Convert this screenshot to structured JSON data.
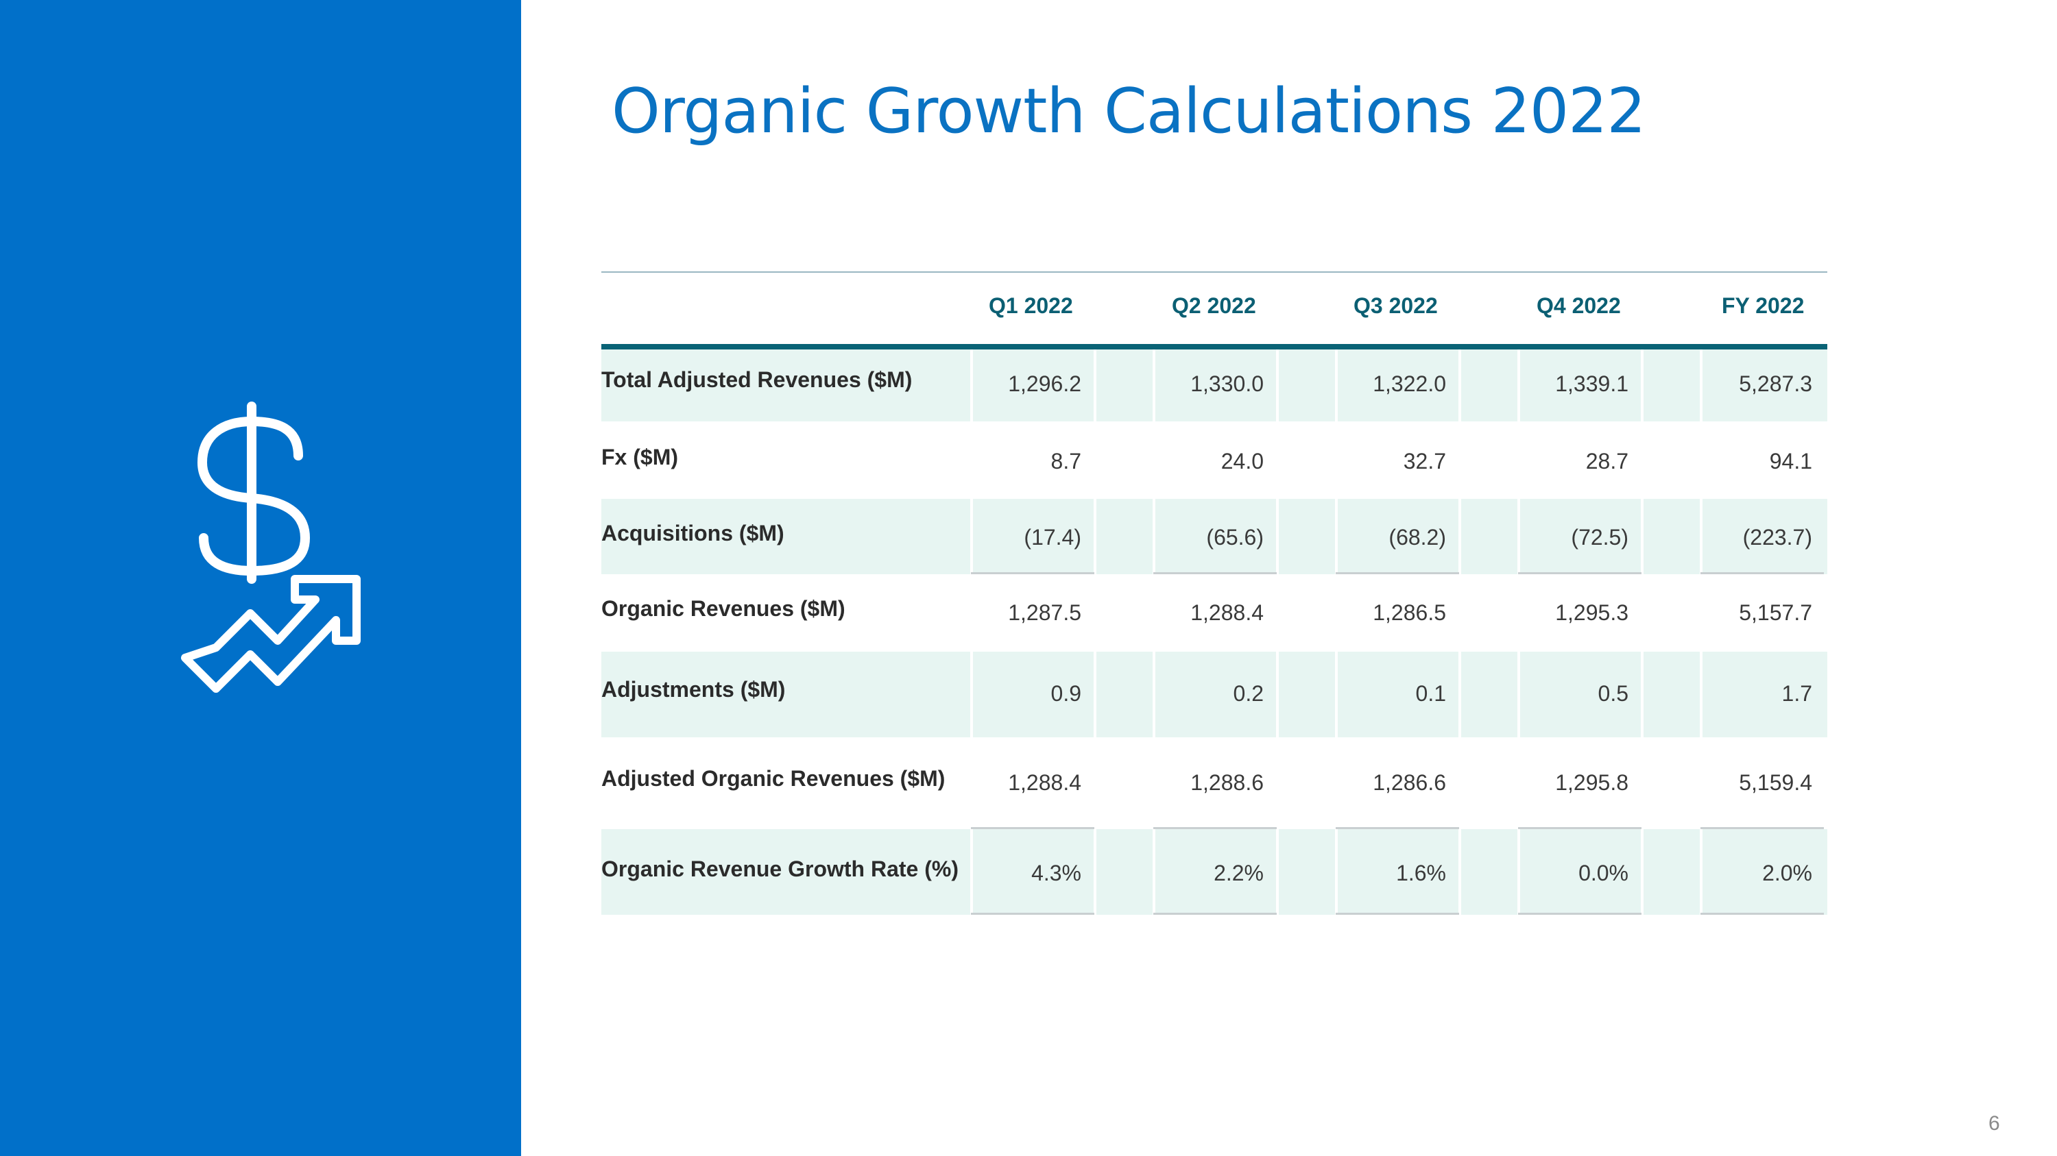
{
  "slide": {
    "title": "Organic Growth Calculations 2022",
    "page_number": "6",
    "icon": "dollar-growth-icon",
    "colors": {
      "sidebar": "#0170c9",
      "title": "#0a72c2",
      "header_text": "#0b5f73",
      "header_rule": "#0a6376",
      "row_shade": "#e7f5f2"
    }
  },
  "table": {
    "columns": [
      "Q1 2022",
      "Q2 2022",
      "Q3 2022",
      "Q4 2022",
      "FY 2022"
    ],
    "rows": [
      {
        "label": "Total Adjusted Revenues ($M)",
        "values": [
          "1,296.2",
          "1,330.0",
          "1,322.0",
          "1,339.1",
          "5,287.3"
        ]
      },
      {
        "label": "Fx ($M)",
        "values": [
          "8.7",
          "24.0",
          "32.7",
          "28.7",
          "94.1"
        ]
      },
      {
        "label": "Acquisitions ($M)",
        "values": [
          "(17.4)",
          "(65.6)",
          "(68.2)",
          "(72.5)",
          "(223.7)"
        ]
      },
      {
        "label": "Organic Revenues ($M)",
        "values": [
          "1,287.5",
          "1,288.4",
          "1,286.5",
          "1,295.3",
          "5,157.7"
        ]
      },
      {
        "label": "Adjustments ($M)",
        "values": [
          "0.9",
          "0.2",
          "0.1",
          "0.5",
          "1.7"
        ]
      },
      {
        "label": "Adjusted Organic Revenues ($M)",
        "values": [
          "1,288.4",
          "1,288.6",
          "1,286.6",
          "1,295.8",
          "5,159.4"
        ]
      },
      {
        "label": "Organic Revenue Growth Rate (%)",
        "values": [
          "4.3%",
          "2.2%",
          "1.6%",
          "0.0%",
          "2.0%"
        ]
      }
    ]
  }
}
